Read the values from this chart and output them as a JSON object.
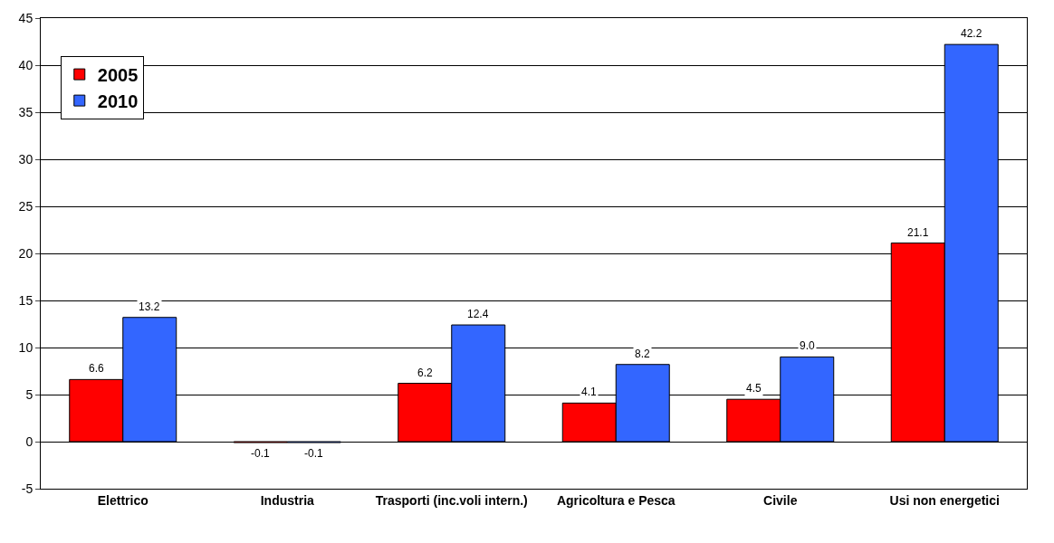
{
  "chart_data": {
    "type": "bar",
    "categories": [
      "Elettrico",
      "Industria",
      "Trasporti (inc.voli intern.)",
      "Agricoltura e Pesca",
      "Civile",
      "Usi non energetici"
    ],
    "series": [
      {
        "name": "2005",
        "color": "#ff0000",
        "values": [
          6.6,
          -0.1,
          6.2,
          4.1,
          4.5,
          21.1
        ],
        "value_labels": [
          "6.6",
          "-0.1",
          "6.2",
          "4.1",
          "4.5",
          "21.1"
        ]
      },
      {
        "name": "2010",
        "color": "#3366ff",
        "values": [
          13.2,
          -0.1,
          12.4,
          8.2,
          9.0,
          42.2
        ],
        "value_labels": [
          "13.2",
          "-0.1",
          "12.4",
          "8.2",
          "9.0",
          "42.2"
        ]
      }
    ],
    "ylim": [
      -5,
      45
    ],
    "yticks": [
      -5,
      0,
      5,
      10,
      15,
      20,
      25,
      30,
      35,
      40,
      45
    ],
    "grid": "y",
    "legend": "top left"
  }
}
